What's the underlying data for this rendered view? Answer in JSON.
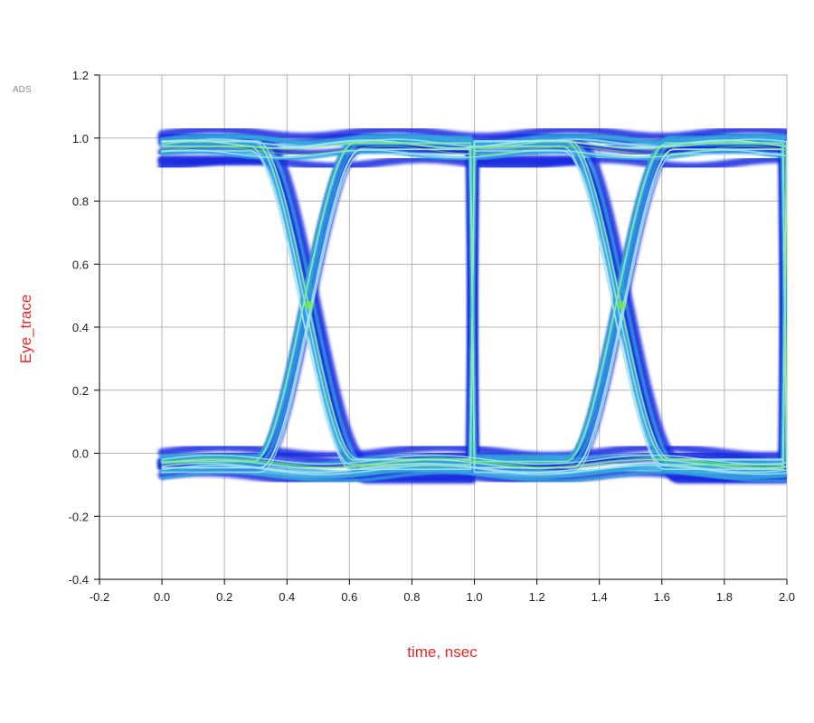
{
  "chart_data": {
    "type": "scatter",
    "subtype": "eye-diagram",
    "title": "",
    "logo": "ADS",
    "xlabel": "time, nsec",
    "ylabel": "Eye_trace",
    "xlim": [
      -0.2,
      2.0
    ],
    "ylim": [
      -0.4,
      1.2
    ],
    "x_ticks": [
      -0.2,
      0.0,
      0.2,
      0.4,
      0.6,
      0.8,
      1.0,
      1.2,
      1.4,
      1.6,
      1.8,
      2.0
    ],
    "x_tick_labels": [
      "-0.2",
      "0.0",
      "0.2",
      "0.4",
      "0.6",
      "0.8",
      "1.0",
      "1.2",
      "1.4",
      "1.6",
      "1.8",
      "2.0"
    ],
    "y_ticks": [
      -0.4,
      -0.2,
      0.0,
      0.2,
      0.4,
      0.6,
      0.8,
      1.0,
      1.2
    ],
    "y_tick_labels": [
      "-0.4",
      "-0.2",
      "0.0",
      "0.2",
      "0.4",
      "0.6",
      "0.8",
      "1.0",
      "1.2"
    ],
    "grid": true,
    "data_range_x": [
      0.0,
      2.0
    ],
    "high_level": 0.97,
    "low_level": -0.04,
    "high_band": [
      0.88,
      1.07
    ],
    "low_band": [
      -0.13,
      0.05
    ],
    "crossing_points": [
      {
        "x": 0.47,
        "y": 0.47
      },
      {
        "x": 1.47,
        "y": 0.47
      }
    ],
    "transitions": [
      {
        "type": "falling",
        "x_start": 0.3,
        "x_end": 0.62
      },
      {
        "type": "rising",
        "x_start": 0.3,
        "x_end": 0.62
      },
      {
        "type": "falling",
        "x_start": 1.3,
        "x_end": 1.62
      },
      {
        "type": "rising",
        "x_start": 1.3,
        "x_end": 1.62
      }
    ],
    "unit_interval_ns": 1.0,
    "colors": {
      "axis_label": "#e02a2a",
      "density_low": "#1428e0",
      "density_mid": "#33a6dd",
      "density_high": "#a8e6f5",
      "density_peak": "#74ee40",
      "grid": "#b4b4b4"
    }
  }
}
